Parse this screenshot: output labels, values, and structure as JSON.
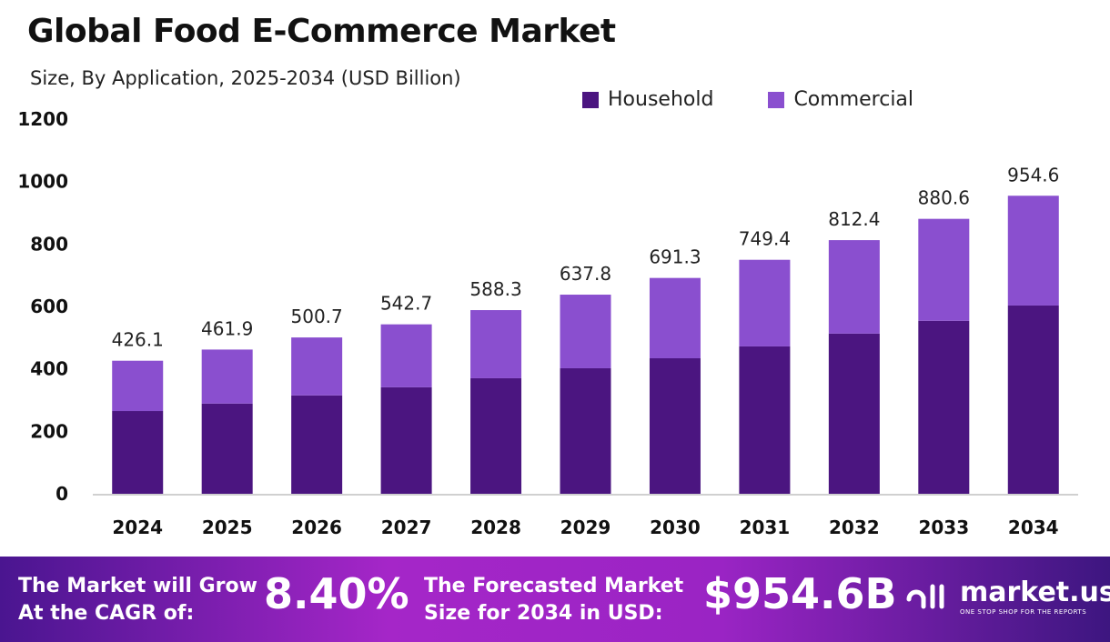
{
  "chart_data": {
    "type": "bar",
    "stacked": true,
    "title": "Global Food E-Commerce Market",
    "subtitle": "Size, By Application, 2025-2034 (USD Billion)",
    "categories": [
      "2024",
      "2025",
      "2026",
      "2027",
      "2028",
      "2029",
      "2030",
      "2031",
      "2032",
      "2033",
      "2034"
    ],
    "series": [
      {
        "name": "Household",
        "color": "#4b1580",
        "values": [
          265,
          289,
          315,
          341,
          370,
          402,
          434,
          472,
          513,
          554,
          603
        ]
      },
      {
        "name": "Commercial",
        "color": "#8a4fcf",
        "values": [
          161.1,
          172.9,
          185.7,
          201.7,
          218.3,
          235.8,
          257.3,
          277.4,
          299.4,
          326.6,
          351.6
        ]
      }
    ],
    "totals": [
      "426.1",
      "461.9",
      "500.7",
      "542.7",
      "588.3",
      "637.8",
      "691.3",
      "749.4",
      "812.4",
      "880.6",
      "954.6"
    ],
    "yticks": [
      "0",
      "200",
      "400",
      "600",
      "800",
      "1000",
      "1200"
    ],
    "ylim": [
      0,
      1200
    ],
    "grid": false,
    "legend": "top-right"
  },
  "footer": {
    "cagr_label": "The Market will Grow At the CAGR of:",
    "cagr_value": "8.40%",
    "forecast_label": "The Forecasted Market Size for 2034 in USD:",
    "forecast_value": "$954.6B",
    "logo_name": "market.us",
    "logo_tagline": "ONE STOP SHOP FOR THE REPORTS"
  }
}
